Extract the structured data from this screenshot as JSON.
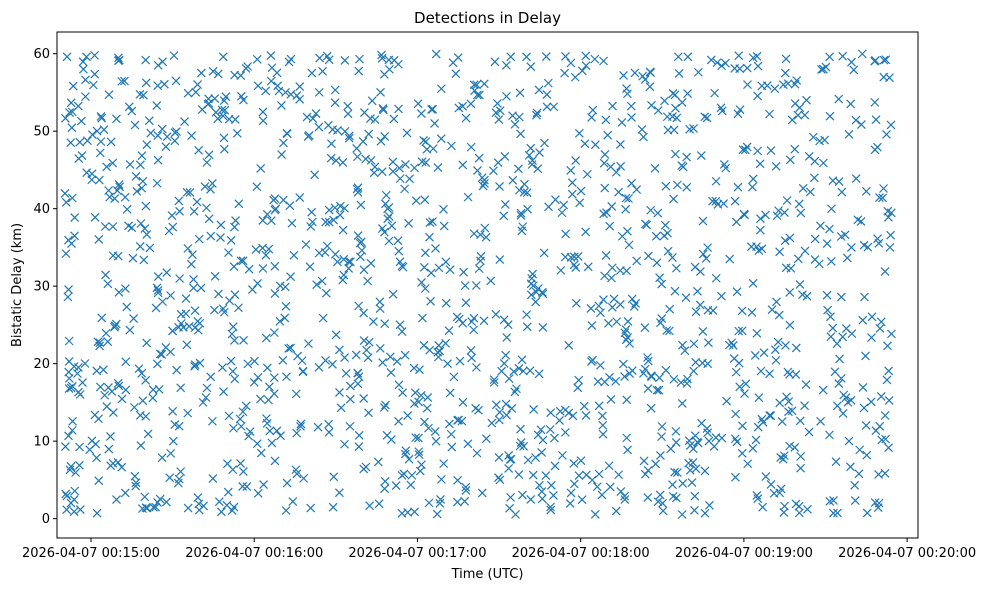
{
  "chart_data": {
    "type": "scatter",
    "title": "Detections in Delay",
    "xlabel": "Time (UTC)",
    "ylabel": "Bistatic Delay (km)",
    "marker": "x",
    "color": "#1f77b4",
    "xlim_seconds_from_00_14_00": [
      47.5,
      364.0
    ],
    "ylim": [
      -2.5,
      62.8
    ],
    "yticks": [
      0,
      10,
      20,
      30,
      40,
      50,
      60
    ],
    "xticks": [
      {
        "seconds": 60,
        "label": "2026-04-07 00:15:00"
      },
      {
        "seconds": 120,
        "label": "2026-04-07 00:16:00"
      },
      {
        "seconds": 180,
        "label": "2026-04-07 00:17:00"
      },
      {
        "seconds": 240,
        "label": "2026-04-07 00:18:00"
      },
      {
        "seconds": 300,
        "label": "2026-04-07 00:19:00"
      },
      {
        "seconds": 360,
        "label": "2026-04-07 00:20:00"
      }
    ],
    "time_range_seconds": [
      50,
      355
    ],
    "delay_range_km": [
      0.5,
      60.0
    ],
    "point_count_approx": 1500,
    "sample_points": [
      {
        "t": 51.2,
        "d": 59.6
      },
      {
        "t": 52.1,
        "d": 52.4
      },
      {
        "t": 50.8,
        "d": 34.2
      },
      {
        "t": 51.5,
        "d": 28.6
      },
      {
        "t": 52.0,
        "d": 18.1
      },
      {
        "t": 50.6,
        "d": 9.3
      },
      {
        "t": 53.8,
        "d": 0.9
      },
      {
        "t": 57.2,
        "d": 58.0
      },
      {
        "t": 63.4,
        "d": 47.2
      },
      {
        "t": 70.1,
        "d": 59.1
      },
      {
        "t": 75.0,
        "d": 52.6
      },
      {
        "t": 78.9,
        "d": 1.3
      },
      {
        "t": 84.7,
        "d": 58.5
      },
      {
        "t": 92.3,
        "d": 41.0
      },
      {
        "t": 99.8,
        "d": 1.1
      },
      {
        "t": 108.6,
        "d": 59.6
      },
      {
        "t": 117.0,
        "d": 58.1
      },
      {
        "t": 124.3,
        "d": 34.0
      },
      {
        "t": 133.5,
        "d": 59.3
      },
      {
        "t": 141.2,
        "d": 57.5
      },
      {
        "t": 150.6,
        "d": 50.1
      },
      {
        "t": 158.7,
        "d": 59.3
      },
      {
        "t": 169.5,
        "d": 59.2
      },
      {
        "t": 176.4,
        "d": 0.8
      },
      {
        "t": 186.3,
        "d": 51.0
      },
      {
        "t": 195.0,
        "d": 59.5
      },
      {
        "t": 203.8,
        "d": 44.0
      },
      {
        "t": 212.7,
        "d": 58.5
      },
      {
        "t": 220.1,
        "d": 59.6
      },
      {
        "t": 228.9,
        "d": 1.5
      },
      {
        "t": 236.4,
        "d": 58.8
      },
      {
        "t": 245.2,
        "d": 59.3
      },
      {
        "t": 253.1,
        "d": 44.7
      },
      {
        "t": 262.8,
        "d": 57.1
      },
      {
        "t": 270.3,
        "d": 1.0
      },
      {
        "t": 279.4,
        "d": 59.6
      },
      {
        "t": 288.0,
        "d": 59.2
      },
      {
        "t": 296.6,
        "d": 58.1
      },
      {
        "t": 305.2,
        "d": 58.4
      },
      {
        "t": 314.7,
        "d": 0.8
      },
      {
        "t": 323.0,
        "d": 54.0
      },
      {
        "t": 331.5,
        "d": 59.6
      },
      {
        "t": 340.4,
        "d": 57.9
      },
      {
        "t": 348.2,
        "d": 47.6
      },
      {
        "t": 352.8,
        "d": 22.3
      },
      {
        "t": 351.0,
        "d": 41.4
      },
      {
        "t": 349.7,
        "d": 2.0
      },
      {
        "t": 353.5,
        "d": 56.9
      }
    ],
    "generation": {
      "seed": 20260407,
      "count": 1500,
      "t_min": 50.2,
      "t_max": 354.6,
      "d_min": 0.5,
      "d_max": 60.0
    }
  }
}
